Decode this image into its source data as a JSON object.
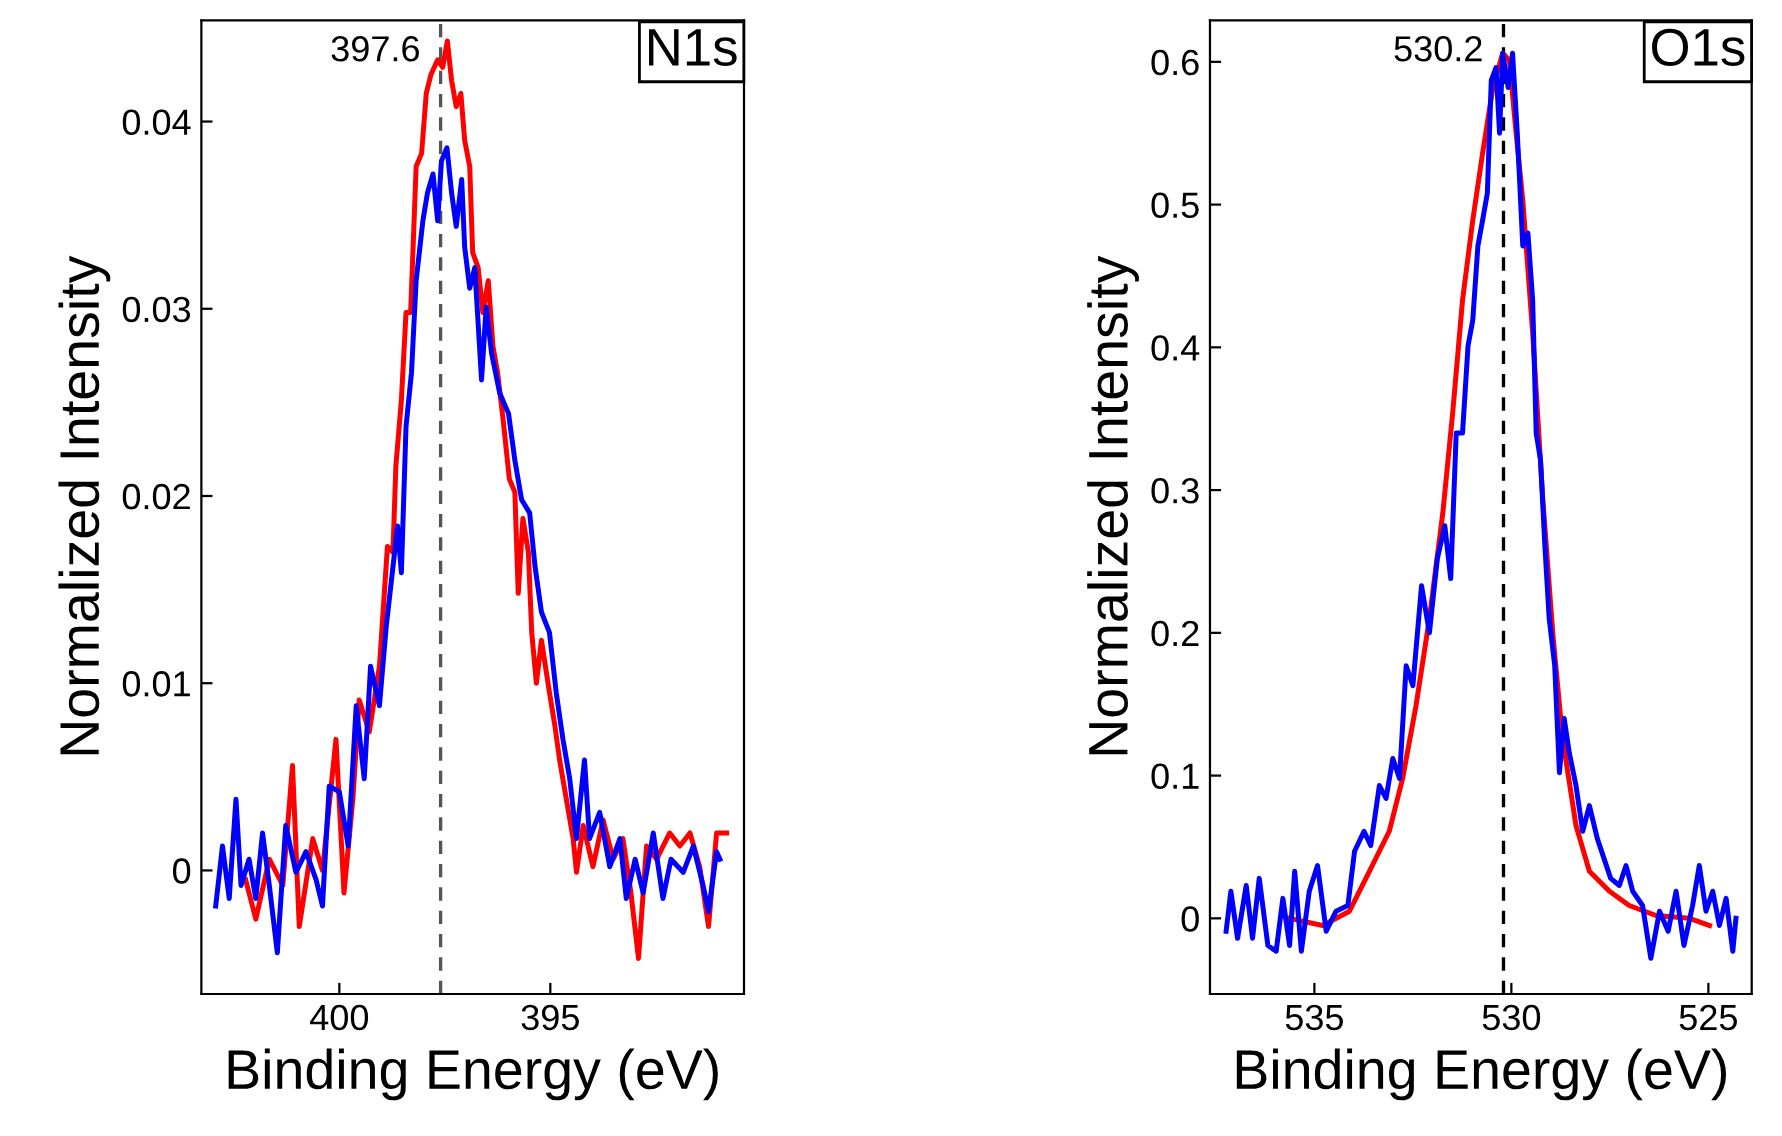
{
  "chart_data": [
    {
      "type": "line",
      "title": "N1s",
      "xlabel": "Binding Energy (eV)",
      "ylabel": "Normalized Intensity",
      "xlim": [
        403.27,
        390.41
      ],
      "ylim": [
        -0.0066,
        0.0454
      ],
      "xticks": [
        400,
        395
      ],
      "yticks": [
        0,
        0.01,
        0.02,
        0.03,
        0.04
      ],
      "grid": false,
      "ref_lines": [
        {
          "axis": "x",
          "value": 397.6,
          "label": "397.6",
          "color": "#555555",
          "line_style": "dashed"
        }
      ],
      "series": [
        {
          "color": "#ff0000",
          "x": [
            402.22,
            401.98,
            401.66,
            401.34,
            401.11,
            400.95,
            400.63,
            400.4,
            400.08,
            399.89,
            399.68,
            399.53,
            399.29,
            399.05,
            398.86,
            398.73,
            398.66,
            398.53,
            398.42,
            398.31,
            398.18,
            398.05,
            397.94,
            397.83,
            397.67,
            397.55,
            397.44,
            397.34,
            397.23,
            397.12,
            397.03,
            396.91,
            396.84,
            396.71,
            396.6,
            396.47,
            396.36,
            396.25,
            396.12,
            395.97,
            395.84,
            395.76,
            395.65,
            395.52,
            395.44,
            395.33,
            395.21,
            395.02,
            394.89,
            394.78,
            394.62,
            394.46,
            394.38,
            394.22,
            393.99,
            393.75,
            393.51,
            393.28,
            393.09,
            392.91,
            392.72,
            392.48,
            392.17,
            391.93,
            391.69,
            391.46,
            391.25,
            391.06,
            390.82
          ],
          "values": [
            -0.0005,
            -0.0026,
            0.0006,
            -0.0008,
            0.0056,
            -0.003,
            0.0017,
            0.0,
            0.007,
            -0.0012,
            0.0038,
            0.0091,
            0.0074,
            0.0109,
            0.0173,
            0.017,
            0.0216,
            0.0251,
            0.0298,
            0.0298,
            0.0376,
            0.0383,
            0.0415,
            0.0425,
            0.0433,
            0.0429,
            0.0443,
            0.0422,
            0.0408,
            0.0415,
            0.039,
            0.0376,
            0.033,
            0.0322,
            0.0298,
            0.0315,
            0.028,
            0.0266,
            0.0241,
            0.0209,
            0.0202,
            0.0148,
            0.0188,
            0.017,
            0.0127,
            0.01,
            0.0123,
            0.0095,
            0.0077,
            0.0059,
            0.0038,
            0.0017,
            -0.0001,
            0.0024,
            0.0002,
            0.0027,
            0.0006,
            0.0017,
            -0.0012,
            -0.0047,
            0.0013,
            0.0006,
            0.002,
            0.0013,
            0.002,
            0.0002,
            -0.003,
            0.002,
            0.002
          ]
        },
        {
          "color": "#0000ff",
          "x": [
            402.93,
            402.77,
            402.61,
            402.45,
            402.33,
            402.14,
            401.98,
            401.82,
            401.66,
            401.47,
            401.27,
            401.03,
            400.79,
            400.55,
            400.4,
            400.24,
            400.0,
            399.79,
            399.6,
            399.41,
            399.26,
            399.05,
            398.89,
            398.73,
            398.62,
            398.53,
            398.42,
            398.29,
            398.18,
            398.02,
            397.91,
            397.78,
            397.67,
            397.58,
            397.45,
            397.34,
            397.23,
            397.1,
            397.03,
            396.91,
            396.79,
            396.63,
            396.52,
            396.39,
            396.2,
            395.99,
            395.84,
            395.68,
            395.49,
            395.36,
            395.21,
            395.02,
            394.86,
            394.7,
            394.54,
            394.38,
            394.19,
            394.07,
            393.83,
            393.59,
            393.35,
            393.2,
            392.99,
            392.8,
            392.56,
            392.33,
            392.14,
            391.85,
            391.61,
            391.38,
            391.25,
            391.06,
            390.98
          ],
          "values": [
            -0.0019,
            0.0013,
            -0.0015,
            0.0038,
            -0.0008,
            0.0006,
            -0.0015,
            0.002,
            -0.0008,
            -0.0044,
            0.0024,
            -0.0001,
            0.001,
            -0.0005,
            -0.0019,
            0.0045,
            0.0042,
            0.0013,
            0.0088,
            0.0049,
            0.0109,
            0.0088,
            0.013,
            0.0162,
            0.0184,
            0.0159,
            0.0237,
            0.0266,
            0.0315,
            0.0347,
            0.0362,
            0.0372,
            0.0347,
            0.0379,
            0.0386,
            0.0362,
            0.0344,
            0.0369,
            0.0333,
            0.0311,
            0.0322,
            0.0262,
            0.0301,
            0.0276,
            0.0255,
            0.0244,
            0.0219,
            0.0198,
            0.0191,
            0.0162,
            0.0138,
            0.0127,
            0.0095,
            0.007,
            0.0049,
            0.0017,
            0.0059,
            0.0017,
            0.0031,
            0.0002,
            0.0017,
            -0.0015,
            0.0006,
            -0.0012,
            0.002,
            -0.0015,
            0.0006,
            -0.0001,
            0.0013,
            -0.0008,
            -0.0022,
            0.001,
            0.0006
          ]
        }
      ]
    },
    {
      "type": "line",
      "title": "O1s",
      "xlabel": "Binding Energy (eV)",
      "ylabel": "Normalized Intensity",
      "xlim": [
        537.65,
        523.9
      ],
      "ylim": [
        -0.053,
        0.629
      ],
      "xticks": [
        535,
        530,
        525
      ],
      "yticks": [
        0,
        0.1,
        0.2,
        0.3,
        0.4,
        0.5,
        0.6
      ],
      "grid": false,
      "ref_lines": [
        {
          "axis": "x",
          "value": 530.2,
          "label": "530.2",
          "color": "#000000",
          "line_style": "dashed"
        }
      ],
      "series": [
        {
          "color": "#ff0000",
          "x": [
            535.63,
            534.79,
            534.11,
            533.6,
            533.1,
            532.76,
            532.42,
            532.08,
            531.74,
            531.49,
            531.24,
            530.98,
            530.73,
            530.47,
            530.22,
            530.05,
            529.88,
            529.71,
            529.46,
            529.2,
            528.95,
            528.7,
            528.36,
            528.02,
            527.51,
            527.01,
            526.33,
            525.48,
            524.97
          ],
          "values": [
            0.0,
            -0.005,
            0.005,
            0.033,
            0.061,
            0.098,
            0.149,
            0.21,
            0.284,
            0.354,
            0.433,
            0.489,
            0.536,
            0.582,
            0.606,
            0.601,
            0.55,
            0.503,
            0.41,
            0.293,
            0.2,
            0.126,
            0.065,
            0.033,
            0.019,
            0.009,
            0.002,
            0.0,
            -0.005
          ]
        },
        {
          "color": "#0000ff",
          "x": [
            537.24,
            537.12,
            536.95,
            536.73,
            536.57,
            536.4,
            536.18,
            535.97,
            535.8,
            535.63,
            535.5,
            535.33,
            535.13,
            534.92,
            534.7,
            534.45,
            534.15,
            533.98,
            533.74,
            533.57,
            533.35,
            533.18,
            533.01,
            532.84,
            532.67,
            532.5,
            532.28,
            532.08,
            531.88,
            531.69,
            531.54,
            531.4,
            531.24,
            531.1,
            530.98,
            530.85,
            530.73,
            530.61,
            530.51,
            530.39,
            530.3,
            530.22,
            530.08,
            529.97,
            529.85,
            529.71,
            529.58,
            529.46,
            529.37,
            529.26,
            529.15,
            529.04,
            528.9,
            528.78,
            528.66,
            528.53,
            528.36,
            528.19,
            528.02,
            527.82,
            527.65,
            527.48,
            527.26,
            527.09,
            526.92,
            526.67,
            526.46,
            526.24,
            526.02,
            525.82,
            525.62,
            525.4,
            525.23,
            525.06,
            524.89,
            524.72,
            524.55,
            524.38,
            524.3
          ],
          "values": [
            -0.009,
            0.019,
            -0.014,
            0.023,
            -0.014,
            0.028,
            -0.019,
            -0.023,
            0.014,
            -0.019,
            0.033,
            -0.023,
            0.019,
            0.037,
            -0.009,
            0.005,
            0.009,
            0.047,
            0.061,
            0.051,
            0.093,
            0.084,
            0.112,
            0.098,
            0.177,
            0.163,
            0.233,
            0.2,
            0.252,
            0.275,
            0.238,
            0.34,
            0.34,
            0.401,
            0.419,
            0.471,
            0.489,
            0.508,
            0.587,
            0.596,
            0.55,
            0.606,
            0.582,
            0.606,
            0.55,
            0.471,
            0.48,
            0.433,
            0.34,
            0.321,
            0.261,
            0.21,
            0.177,
            0.102,
            0.14,
            0.116,
            0.093,
            0.061,
            0.079,
            0.056,
            0.042,
            0.028,
            0.023,
            0.037,
            0.019,
            0.009,
            -0.028,
            0.005,
            -0.009,
            0.019,
            -0.019,
            0.009,
            0.037,
            0.005,
            0.019,
            -0.005,
            0.014,
            -0.023,
            0.0
          ]
        }
      ]
    }
  ]
}
